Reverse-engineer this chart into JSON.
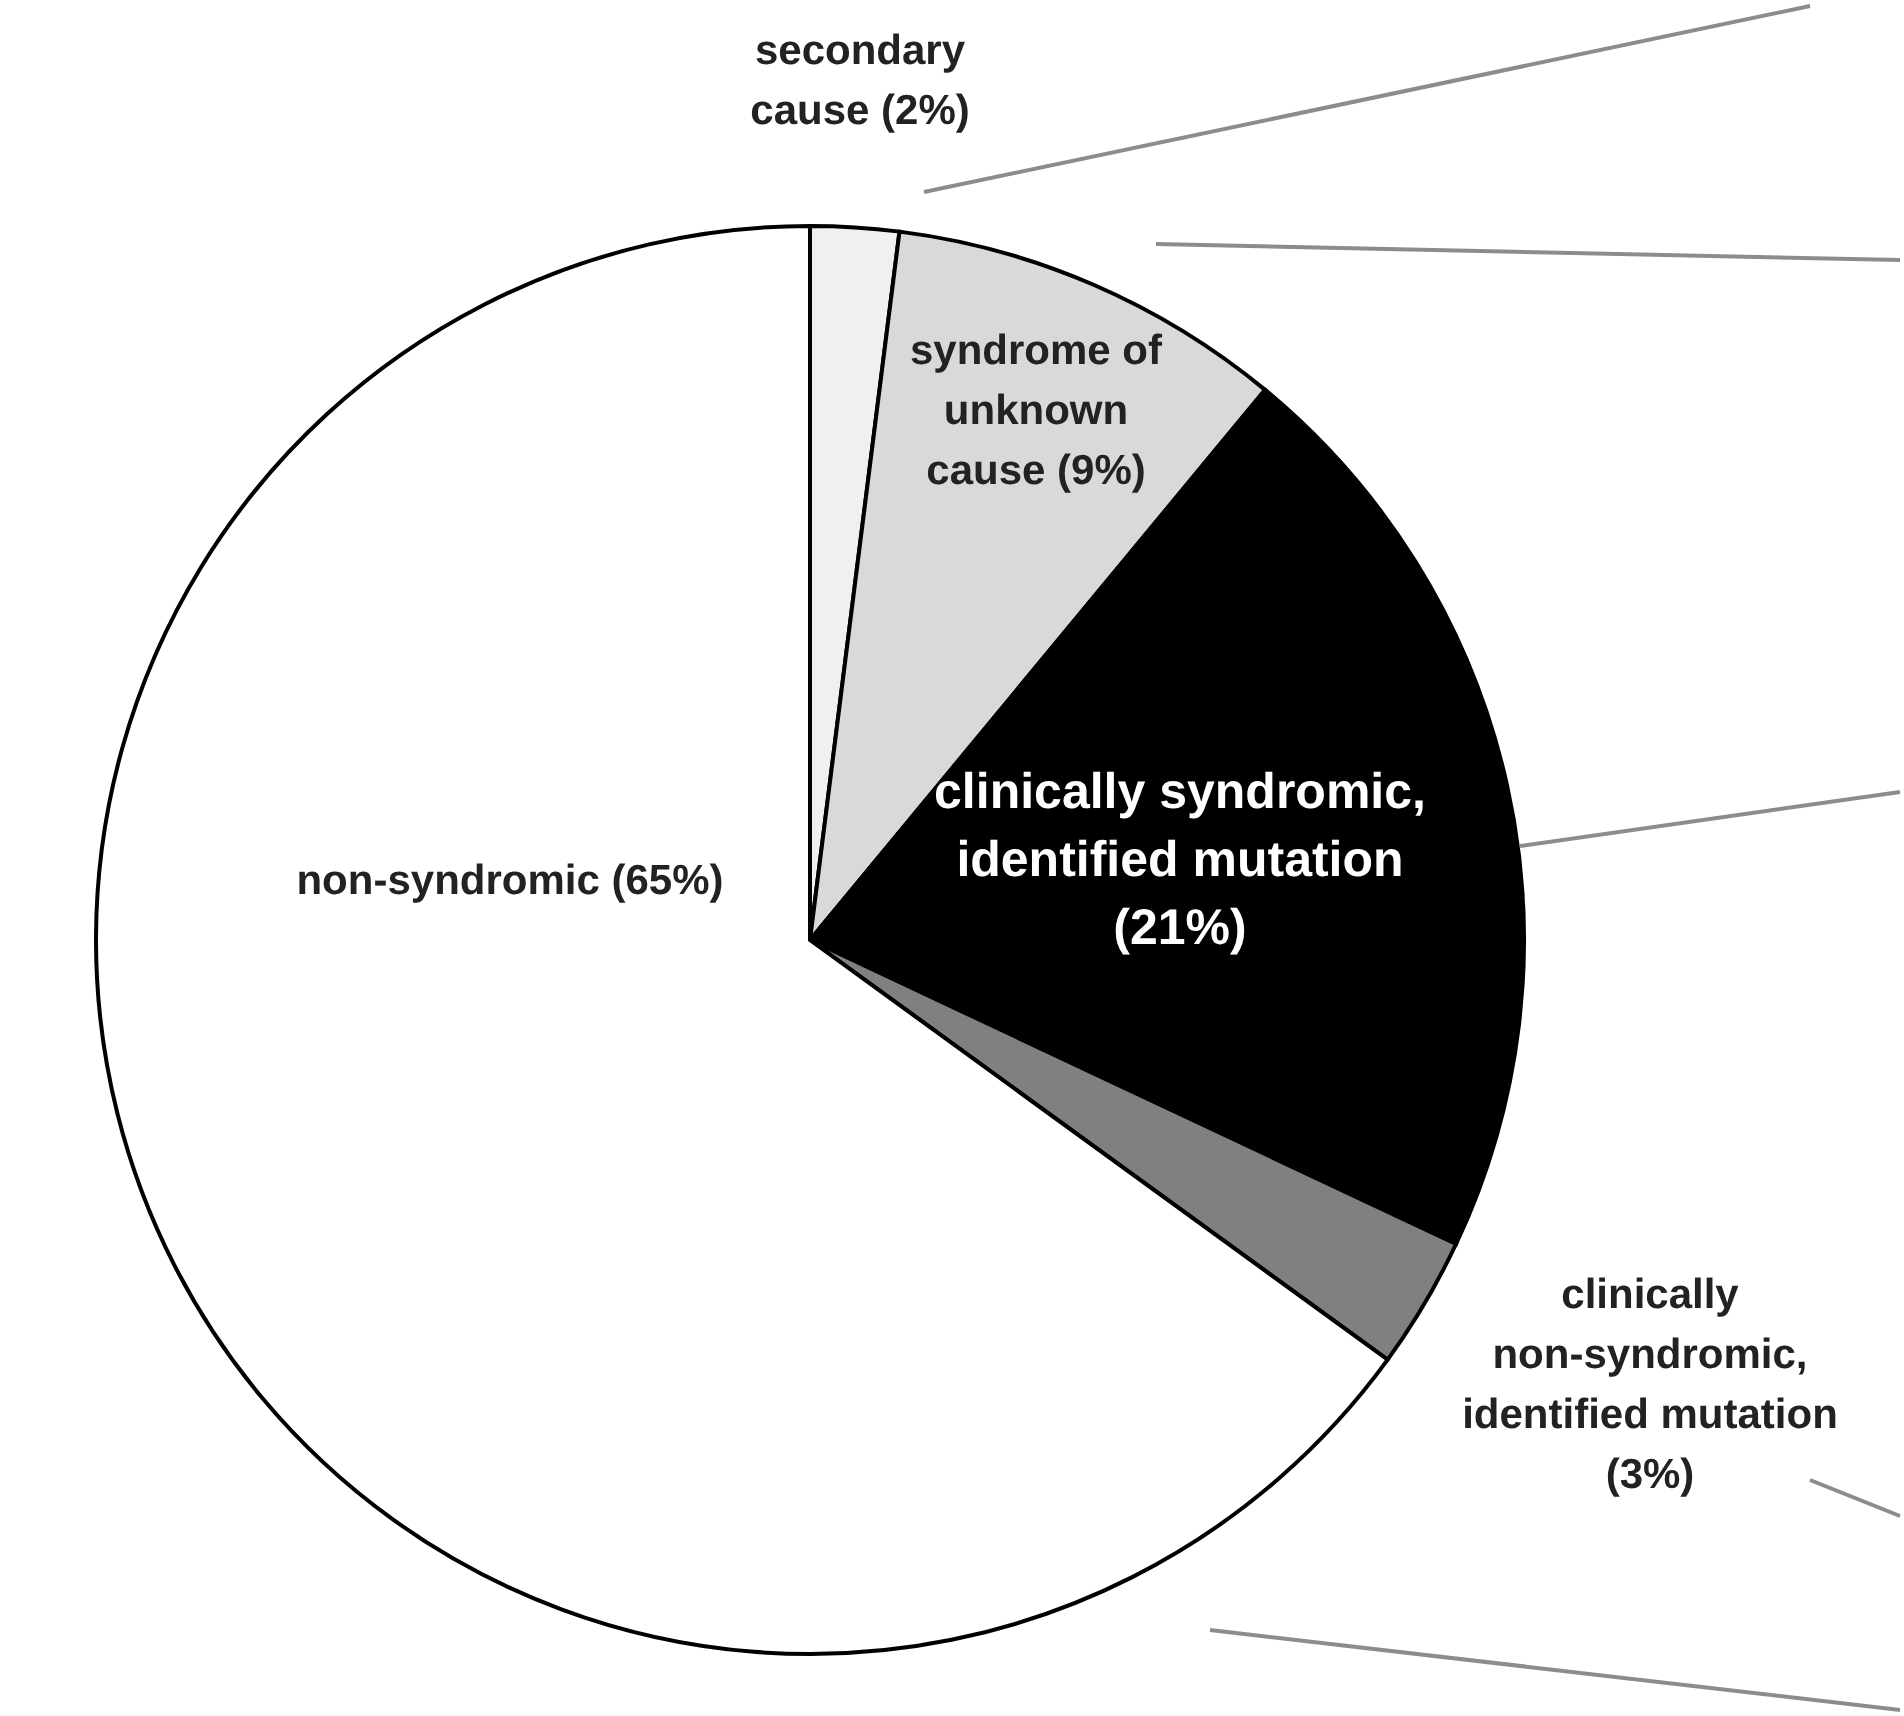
{
  "chart_data": {
    "type": "pie",
    "categories": [
      "secondary cause (2%)",
      "syndrome of unknown cause (9%)",
      "clinically syndromic, identified mutation (21%)",
      "clinically non-syndromic, identified mutation (3%)",
      "non-syndromic (65%)"
    ],
    "values": [
      2,
      9,
      21,
      3,
      65
    ],
    "colors": [
      "#f0f0f0",
      "#d9d9d9",
      "#000000",
      "#808080",
      "#ffffff"
    ],
    "legend": false
  }
}
